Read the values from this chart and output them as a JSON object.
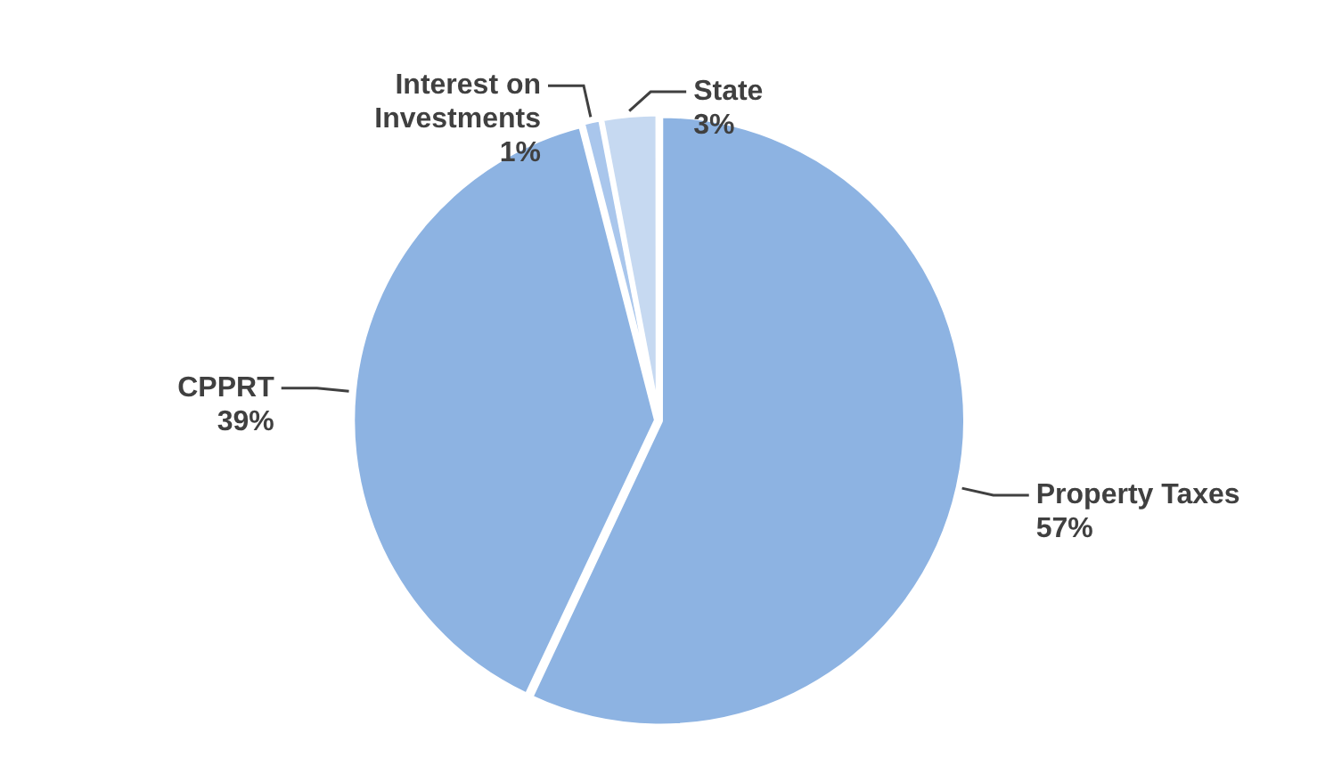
{
  "chart_data": {
    "type": "pie",
    "categories": [
      "Property Taxes",
      "CPPRT",
      "Interest on\nInvestments",
      "State"
    ],
    "values": [
      57,
      39,
      1,
      3
    ],
    "value_labels": [
      "57%",
      "39%",
      "1%",
      "3%"
    ],
    "colors": [
      "#8db3e2",
      "#8db3e2",
      "#a9c6ec",
      "#c6d9f1"
    ],
    "legend": false
  }
}
